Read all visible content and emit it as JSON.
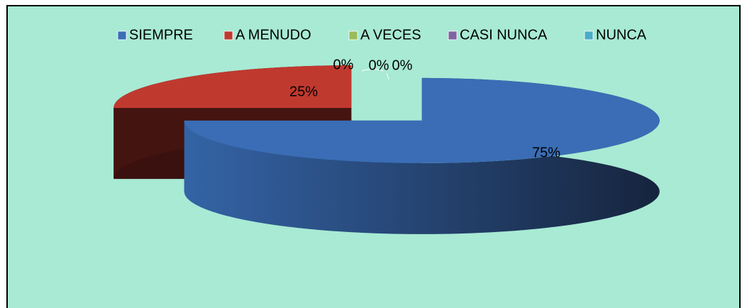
{
  "chart_data": {
    "type": "pie3d",
    "categories": [
      "SIEMPRE",
      "A MENUDO",
      "A VECES",
      "CASI NUNCA",
      "NUNCA"
    ],
    "values": [
      75,
      25,
      0,
      0,
      0
    ],
    "value_labels": [
      "75%",
      "25%",
      "0%",
      "0%",
      "0%"
    ],
    "colors": [
      "#3a6db5",
      "#c0392f",
      "#9bbb59",
      "#8064a2",
      "#4bacc6"
    ],
    "legend": "top"
  }
}
